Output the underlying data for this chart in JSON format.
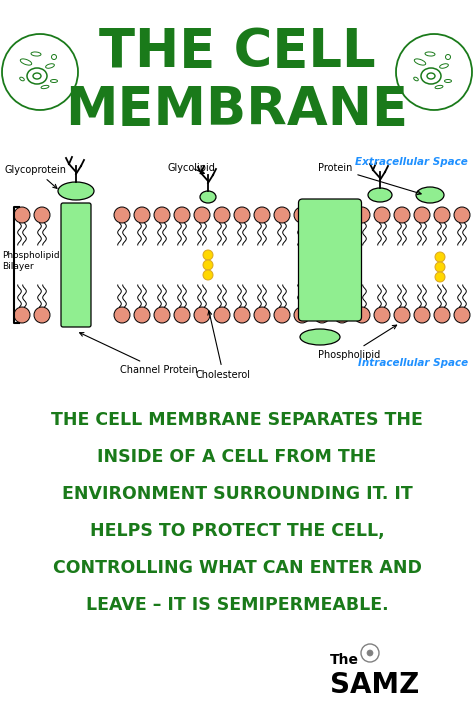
{
  "bg_color": "#ffffff",
  "title_line1": "THE CELL",
  "title_line2": "MEMBRANE",
  "title_color": "#1a7a1a",
  "title_fontsize": 38,
  "body_text_lines": [
    "THE CELL MEMBRANE SEPARATES THE",
    "INSIDE OF A CELL FROM THE",
    "ENVIRONMENT SURROUNDING IT. IT",
    "HELPS TO PROTECT THE CELL,",
    "CONTROLLING WHAT CAN ENTER AND",
    "LEAVE – IT IS SEMIPERMEABLE."
  ],
  "body_color": "#1a7a1a",
  "body_fontsize": 12.5,
  "label_color": "#000000",
  "label_fontsize": 7.0,
  "extracell_color": "#1e90ff",
  "intracell_color": "#1e90ff",
  "salmon_color": "#E8927C",
  "green_color": "#90EE90",
  "yellow_color": "#FFD700",
  "samz_color": "#000000"
}
